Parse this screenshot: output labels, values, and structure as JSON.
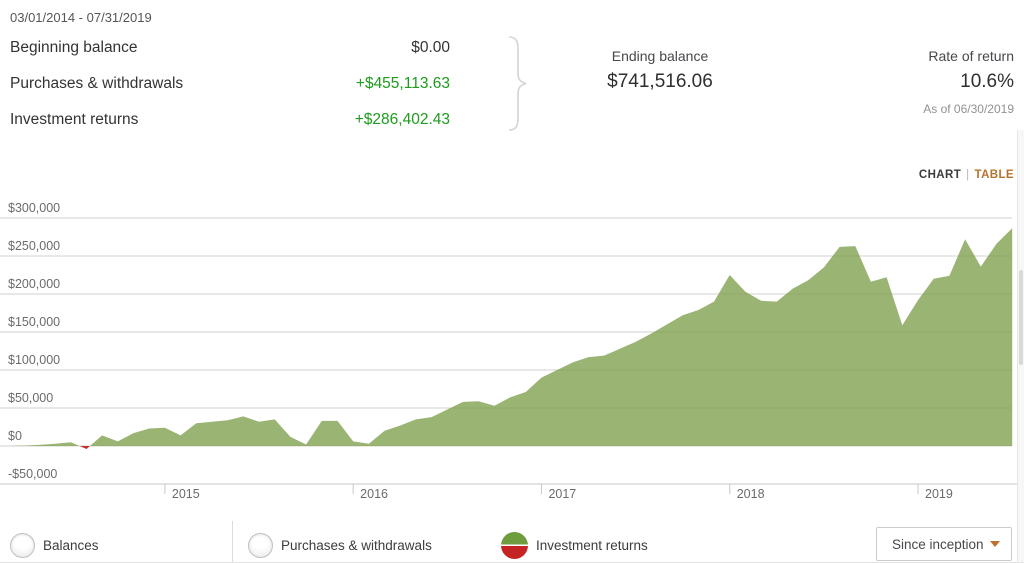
{
  "header": {
    "date_range": "03/01/2014 - 07/31/2019",
    "summary_rows": [
      {
        "label": "Beginning balance",
        "value": "$0.00",
        "positive": false
      },
      {
        "label": "Purchases & withdrawals",
        "value": "+$455,113.63",
        "positive": true
      },
      {
        "label": "Investment returns",
        "value": "+$286,402.43",
        "positive": true
      }
    ],
    "ending_balance": {
      "label": "Ending balance",
      "value": "$741,516.06"
    },
    "rate_of_return": {
      "label": "Rate of return",
      "value": "10.6%",
      "as_of": "As of 06/30/2019"
    }
  },
  "view_toggle": {
    "chart_label": "CHART",
    "separator": "|",
    "table_label": "TABLE",
    "active": "CHART"
  },
  "chart_data": {
    "type": "area",
    "series_name": "Investment returns",
    "x_unit": "month",
    "x_start": "2014-03",
    "x_end": "2019-07",
    "x_tick_labels": [
      "2015",
      "2016",
      "2017",
      "2018",
      "2019"
    ],
    "y_ticks": [
      300000,
      250000,
      200000,
      150000,
      100000,
      50000,
      0,
      -50000
    ],
    "y_tick_labels": [
      "$300,000",
      "$250,000",
      "$200,000",
      "$150,000",
      "$100,000",
      "$50,000",
      "$0",
      "-$50,000"
    ],
    "ylim": [
      -50000,
      330000
    ],
    "grid": true,
    "values": [
      0,
      500,
      1500,
      3000,
      5000,
      -4000,
      14000,
      6000,
      17000,
      23000,
      24000,
      14000,
      30000,
      32000,
      34000,
      39000,
      32000,
      35000,
      12000,
      2000,
      33000,
      33000,
      6000,
      3000,
      20000,
      27000,
      35000,
      38000,
      48000,
      58000,
      59000,
      53000,
      64000,
      71000,
      90000,
      100000,
      110000,
      117000,
      119000,
      128000,
      137000,
      148000,
      160000,
      172000,
      179000,
      190000,
      225000,
      203000,
      191000,
      190000,
      207000,
      218000,
      235000,
      262000,
      263000,
      216000,
      222000,
      159000,
      192000,
      220000,
      224000,
      272000,
      236000,
      266000,
      286402
    ],
    "positive_color": "#9ab473",
    "negative_color": "#c9302f",
    "legend_position": "bottom"
  },
  "legend": {
    "items": [
      {
        "label": "Balances",
        "selected": false
      },
      {
        "label": "Purchases & withdrawals",
        "selected": false
      },
      {
        "label": "Investment returns",
        "selected": true
      }
    ],
    "range_selector": {
      "value": "Since inception"
    }
  },
  "colors": {
    "positive_text": "#1d9c1d",
    "accent_orange": "#b5742e",
    "legend_green": "#6f9d3e",
    "legend_red": "#c52424",
    "gridline": "#e2e2e2",
    "axis_line": "#c7c7c7",
    "axis_text": "#6b6b6b"
  }
}
